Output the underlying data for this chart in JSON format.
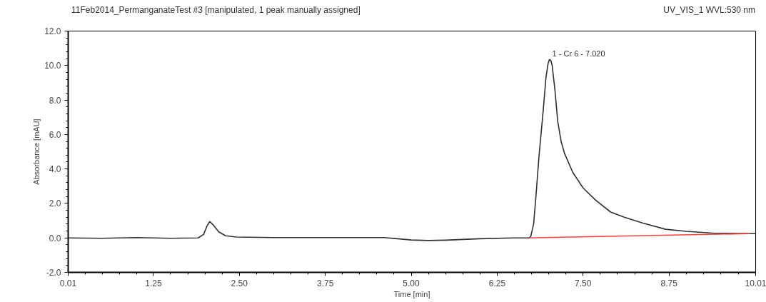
{
  "chart_data": {
    "type": "line",
    "title": "11Feb2014_PermanganateTest #3 [manipulated, 1 peak manually assigned]",
    "subtitle": "UV_VIS_1 WVL:530 nm",
    "xlabel": "Time [min]",
    "ylabel": "Absorbance [mAU]",
    "xlim": [
      0.01,
      10.01
    ],
    "ylim": [
      -2.0,
      12.0
    ],
    "xticks": [
      0.01,
      1.25,
      {
        "value": 2.5,
        "label": "2.50"
      },
      3.75,
      {
        "value": 5,
        "label": "5.00"
      },
      6.25,
      {
        "value": 7.5,
        "label": "7.50"
      },
      8.75,
      10.01
    ],
    "yticks": [
      {
        "value": -2,
        "label": "-2.0"
      },
      {
        "value": 0,
        "label": "0.0"
      },
      {
        "value": 2,
        "label": "2.0"
      },
      {
        "value": 4,
        "label": "4.0"
      },
      {
        "value": 6,
        "label": "6.0"
      },
      {
        "value": 8,
        "label": "8.0"
      },
      {
        "value": 10,
        "label": "10.0"
      },
      {
        "value": 12,
        "label": "12.0"
      }
    ],
    "grid": false,
    "marker": "none",
    "line_style": "solid",
    "annotations": [
      {
        "text": "1 - Cr 6 - 7.020",
        "x": 7.01,
        "y": 10.35
      }
    ],
    "series": [
      {
        "color": "#303030",
        "x": [
          0.01,
          0.5,
          1.0,
          1.5,
          1.9,
          1.98,
          2.03,
          2.07,
          2.12,
          2.2,
          2.3,
          2.45,
          3.0,
          4.0,
          4.6,
          4.8,
          5.0,
          5.25,
          5.5,
          6.0,
          6.5,
          6.72,
          6.74,
          6.78,
          6.81,
          6.86,
          6.92,
          6.96,
          6.99,
          7.01,
          7.03,
          7.05,
          7.09,
          7.13,
          7.18,
          7.23,
          7.35,
          7.5,
          7.68,
          7.9,
          8.1,
          8.37,
          8.7,
          9.0,
          9.42,
          10.01
        ],
        "values": [
          0,
          -0.02,
          0.02,
          -0.02,
          0,
          0.2,
          0.7,
          0.95,
          0.75,
          0.35,
          0.12,
          0.05,
          0.02,
          0.02,
          0.02,
          -0.05,
          -0.12,
          -0.15,
          -0.13,
          -0.05,
          0,
          0,
          0.1,
          0.8,
          2.2,
          4.8,
          7.4,
          9.3,
          10.1,
          10.35,
          10.3,
          10.0,
          8.6,
          6.8,
          5.6,
          4.9,
          3.8,
          2.9,
          2.2,
          1.5,
          1.2,
          0.86,
          0.5,
          0.38,
          0.27,
          0.25
        ]
      },
      {
        "color": "#ff4040",
        "x": [
          6.72,
          9.92
        ],
        "values": [
          0.0,
          0.25
        ]
      }
    ]
  }
}
